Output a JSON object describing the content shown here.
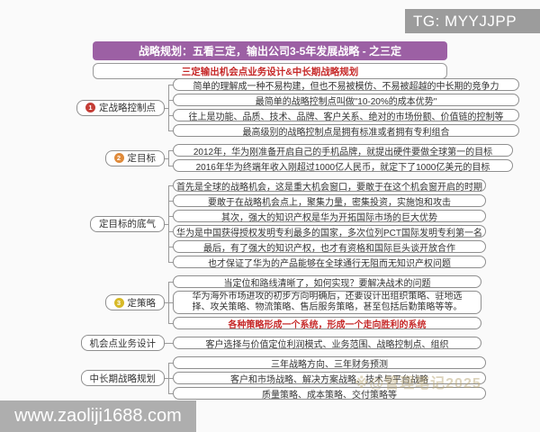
{
  "watermarks": {
    "top_right": "TG: MYYJJPP",
    "bottom_left": "www.zaoliji1688.com",
    "stamp": "※@管理笔记2025"
  },
  "header": {
    "title": "战略规划：五看三定，输出公司3-5年发展战略 - 之三定",
    "subtitle": "三定输出机会点业务设计&中长期战略规划"
  },
  "colors": {
    "title_bg": "#9c60a4",
    "accent_red": "#c62828",
    "badge_red": "#c43c35",
    "badge_orange": "#df8a3a",
    "badge_yellow": "#d7b927"
  },
  "sections": [
    {
      "label": "定战略控制点",
      "badge": "1",
      "badge_color": "#c43c35",
      "rows": [
        {
          "text": "简单的理解成一种不易构建，但也不易被模仿、不易被超越的中长期的竞争力"
        },
        {
          "text": "最简单的战略控制点叫做\"10-20%的成本优势\""
        },
        {
          "text": "往上是功能、品质、技术、品牌、客户关系、绝对的市场份额、价值链的控制等"
        },
        {
          "text": "最高级别的战略控制点是拥有标准或者拥有专利组合"
        }
      ]
    },
    {
      "label": "定目标",
      "badge": "2",
      "badge_color": "#df8a3a",
      "rows": [
        {
          "text": "2012年，华为刚准备开启自己的手机品牌，就提出硬件要做全球第一的目标"
        },
        {
          "text": "2016年华为终端年收入刚超过1000亿人民币，就定下了1000亿美元的目标"
        }
      ]
    },
    {
      "label": "定目标的底气",
      "badge": "",
      "badge_color": "",
      "rows": [
        {
          "text": "首先是全球的战略机会，这是重大机会窗口，要敢于在这个机会窗开启的时期"
        },
        {
          "text": "要敢于在战略机会点上，聚集力量，密集投资，实施饱和攻击"
        },
        {
          "text": "其次，强大的知识产权是华为开拓国际市场的巨大优势"
        },
        {
          "text": "华为是中国获得授权发明专利最多的国家，多次位列PCT国际发明专利第一名"
        },
        {
          "text": "最后，有了强大的知识产权，也才有资格和国际巨头谈开放合作"
        },
        {
          "text": "也才保证了华为的产品能够在全球通行无阻而无知识产权问题"
        }
      ]
    },
    {
      "label": "定策略",
      "badge": "3",
      "badge_color": "#d7b927",
      "rows": [
        {
          "text": "当定位和路线清晰了，如何实现？要解决战术的问题"
        },
        {
          "text": "华为海外市场进攻的初步方向明确后，还要设计出组织策略、驻地选择、攻关策略、物流策略、售后服务策略，甚至包括后勤策略等等。",
          "tall": true
        },
        {
          "text": "各种策略形成一个系统，形成一个走向胜利的系统",
          "red": true
        }
      ]
    },
    {
      "label": "机会点业务设计",
      "badge": "",
      "badge_color": "",
      "rows": [
        {
          "text": "客户选择与价值定位利润模式、业务范围、战略控制点、组织"
        }
      ]
    },
    {
      "label": "中长期战略规划",
      "badge": "",
      "badge_color": "",
      "rows": [
        {
          "text": "三年战略方向、三年财务预测"
        },
        {
          "text": "客户和市场战略、解决方案战略、技术与平台战略"
        },
        {
          "text": "质量策略、成本策略、交付策略等"
        }
      ]
    }
  ]
}
